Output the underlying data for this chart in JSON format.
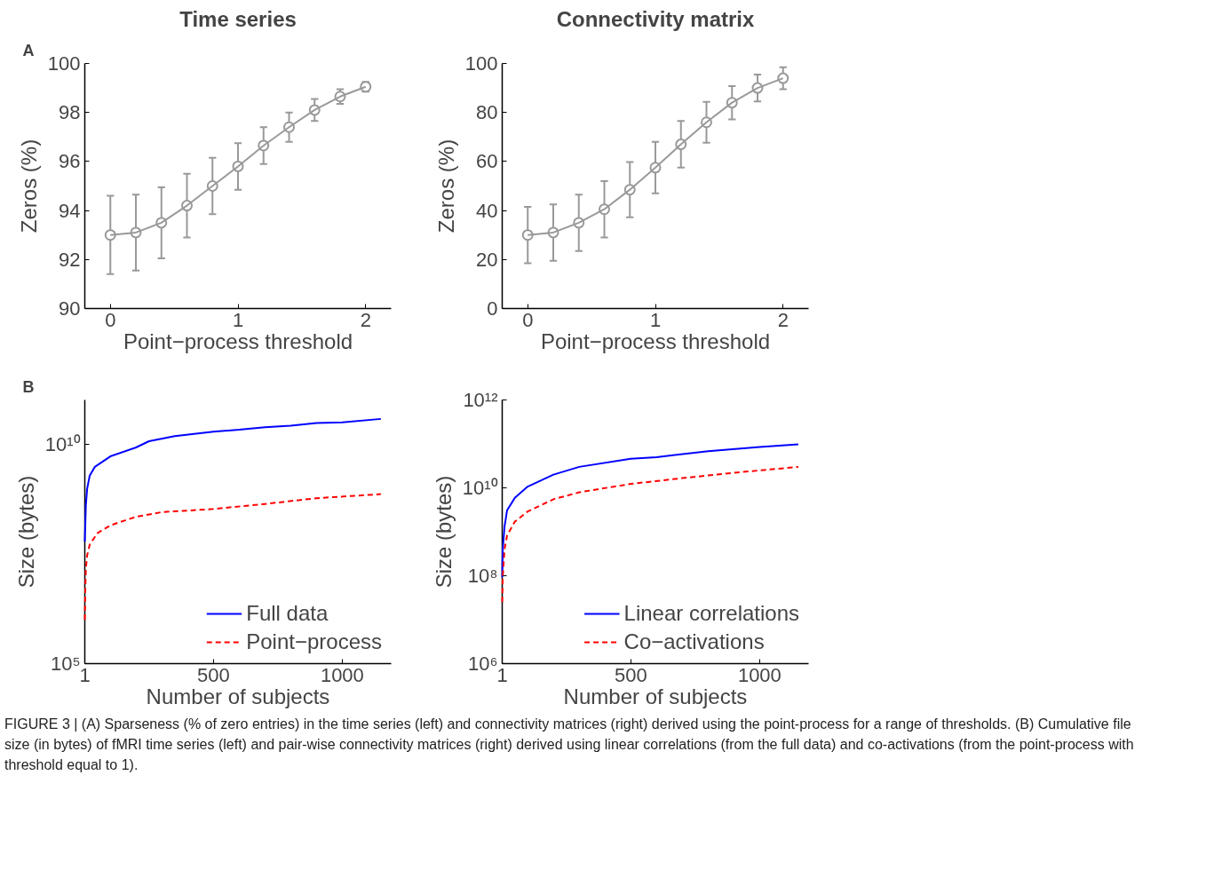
{
  "chart_data": [
    {
      "type": "line",
      "title": "Time series",
      "xlabel": "Point−process threshold",
      "ylabel": "Zeros (%)",
      "annotations": [
        "A"
      ],
      "marker": "circle",
      "x": [
        0,
        0.2,
        0.4,
        0.6,
        0.8,
        1.0,
        1.2,
        1.4,
        1.6,
        1.8,
        2.0
      ],
      "xlim": [
        -0.2,
        2.2
      ],
      "xticks": [
        0,
        1,
        2
      ],
      "ylim": [
        90,
        100
      ],
      "yticks": [
        90,
        92,
        94,
        96,
        98,
        100
      ],
      "series": [
        {
          "color": "#999999",
          "values": [
            93.0,
            93.1,
            93.5,
            94.2,
            95.0,
            95.8,
            96.65,
            97.4,
            98.1,
            98.65,
            99.05
          ],
          "errors": [
            1.6,
            1.55,
            1.45,
            1.3,
            1.15,
            0.95,
            0.75,
            0.6,
            0.45,
            0.3,
            0.2
          ]
        }
      ]
    },
    {
      "type": "line",
      "title": "Connectivity matrix",
      "xlabel": "Point−process threshold",
      "ylabel": "Zeros (%)",
      "marker": "circle",
      "x": [
        0,
        0.2,
        0.4,
        0.6,
        0.8,
        1.0,
        1.2,
        1.4,
        1.6,
        1.8,
        2.0
      ],
      "xlim": [
        -0.2,
        2.2
      ],
      "xticks": [
        0,
        1,
        2
      ],
      "ylim": [
        0,
        100
      ],
      "yticks": [
        0,
        20,
        40,
        60,
        80,
        100
      ],
      "series": [
        {
          "color": "#999999",
          "values": [
            30,
            31,
            35,
            40.5,
            48.5,
            57.5,
            67,
            76,
            84,
            90,
            94
          ],
          "errors": [
            11.5,
            11.5,
            11.5,
            11.5,
            11.3,
            10.5,
            9.5,
            8.3,
            6.8,
            5.5,
            4.5
          ]
        }
      ]
    },
    {
      "type": "line",
      "xlabel": "Number of subjects",
      "ylabel": "Size (bytes)",
      "annotations": [
        "B",
        "FIGURE 3 | (A) Sparseness (% of zero entries) in the time series (left) and connectivity matrices (right) derived using the point-process for a range of thresholds. (B) Cumulative file size (in bytes) of fMRI time series (left) and pair-wise connectivity matrices (right) derived using linear correlations (from the full data) and co-activations (from the point-process with threshold equal to 1)."
      ],
      "log": "y",
      "legend": "bottom right",
      "xlim": [
        1,
        1190
      ],
      "xticks": [
        1,
        500,
        1000
      ],
      "ylim": [
        100000.0,
        100000000000.0
      ],
      "yticks": [
        {
          "value": 100000.0,
          "label": "10⁵"
        },
        {
          "value": 10000000000.0,
          "label": "10¹⁰"
        }
      ],
      "series": [
        {
          "name": "Full data",
          "color": "#0000ff",
          "line_style": "solid",
          "x": [
            1,
            5,
            10,
            20,
            40,
            100,
            200,
            250,
            350,
            500,
            600,
            700,
            800,
            900,
            1000,
            1150
          ],
          "values": [
            60000000.0,
            400000000.0,
            950000000.0,
            1900000000.0,
            3000000000.0,
            5200000000.0,
            8300000000.0,
            11500000000.0,
            15000000000.0,
            19000000000.0,
            21000000000.0,
            24000000000.0,
            26000000000.0,
            30000000000.0,
            31000000000.0,
            37000000000.0
          ]
        },
        {
          "name": "Point−process",
          "color": "#ff0000",
          "line_style": "dashed",
          "x": [
            1,
            3,
            5,
            10,
            20,
            50,
            100,
            200,
            300,
            500,
            700,
            900,
            1150
          ],
          "values": [
            1000000.0,
            5000000.0,
            14000000.0,
            29000000.0,
            51000000.0,
            93000000.0,
            140000000.0,
            220000000.0,
            280000000.0,
            330000000.0,
            430000000.0,
            580000000.0,
            720000000.0
          ]
        }
      ]
    },
    {
      "type": "line",
      "xlabel": "Number of subjects",
      "ylabel": "Size (bytes)",
      "log": "y",
      "legend": "bottom right",
      "xlim": [
        1,
        1190
      ],
      "xticks": [
        1,
        500,
        1000
      ],
      "ylim": [
        1000000.0,
        1000000000000.0
      ],
      "yticks": [
        {
          "value": 1000000.0,
          "label": "10⁶"
        },
        {
          "value": 100000000.0,
          "label": "10⁸"
        },
        {
          "value": 10000000000.0,
          "label": "10¹⁰"
        },
        {
          "value": 1000000000000.0,
          "label": "10¹²"
        }
      ],
      "series": [
        {
          "name": "Linear correlations",
          "color": "#0000ff",
          "line_style": "solid",
          "x": [
            1,
            3,
            10,
            20,
            50,
            100,
            200,
            300,
            500,
            600,
            800,
            1000,
            1150
          ],
          "values": [
            93000000.0,
            400000000.0,
            1300000000.0,
            3100000000.0,
            5900000000.0,
            10700000000.0,
            20000000000.0,
            30000000000.0,
            46000000000.0,
            50000000000.0,
            68000000000.0,
            85000000000.0,
            98000000000.0
          ]
        },
        {
          "name": "Co−activations",
          "color": "#ff0000",
          "line_style": "dashed",
          "x": [
            1,
            3,
            10,
            20,
            50,
            100,
            200,
            300,
            500,
            700,
            900,
            1150
          ],
          "values": [
            25000000.0,
            93000000.0,
            400000000.0,
            830000000.0,
            1700000000.0,
            2900000000.0,
            5500000000.0,
            7900000000.0,
            12300000000.0,
            16600000000.0,
            22000000000.0,
            30000000000.0
          ]
        }
      ]
    }
  ]
}
